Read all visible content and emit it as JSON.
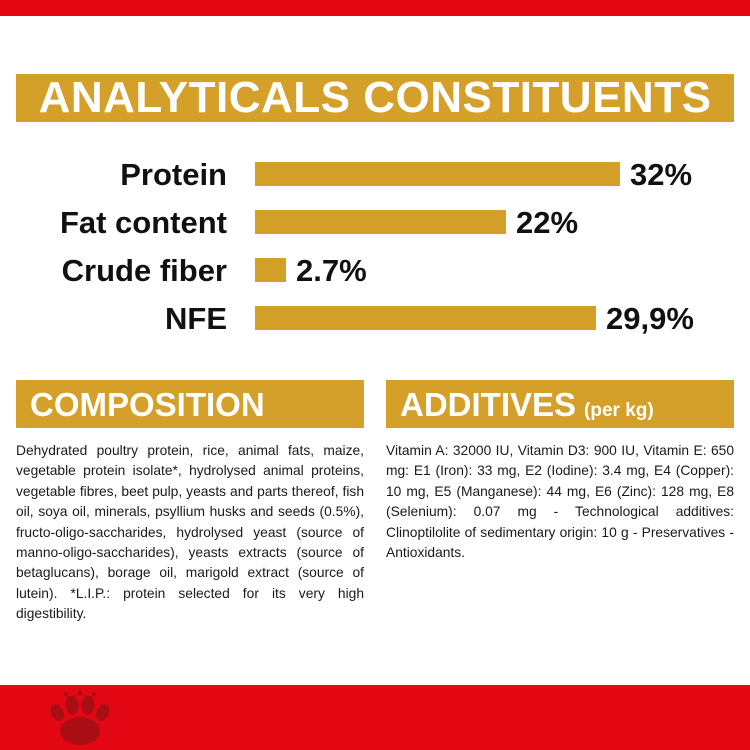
{
  "colors": {
    "gold": "#D4A029",
    "red": "#E30613",
    "paw": "#A80E14",
    "ink": "#111111"
  },
  "header": {
    "title": "ANALYTICALS CONSTITUENTS"
  },
  "chart_data": {
    "type": "bar",
    "orientation": "horizontal",
    "categories": [
      "Protein",
      "Fat content",
      "Crude fiber",
      "NFE"
    ],
    "values": [
      32,
      22,
      2.7,
      29.9
    ],
    "value_labels": [
      "32%",
      "22%",
      "2.7%",
      "29,9%"
    ],
    "title": "ANALYTICALS CONSTITUENTS",
    "xlabel": "",
    "ylabel": "",
    "xlim": [
      0,
      35
    ],
    "grid": false,
    "legend": false,
    "bar_color": "#D4A029"
  },
  "composition": {
    "title": "COMPOSITION",
    "body": "Dehydrated poultry protein, rice, animal fats, maize, vegetable protein isolate*, hydrolysed animal proteins, vegetable fibres, beet pulp, yeasts and parts thereof, fish oil, soya oil, minerals, psyllium husks and seeds (0.5%), fructo-oligo-saccharides, hydrolysed yeast (source of manno-oligo-saccharides), yeasts extracts (source of betaglucans), borage oil, marigold extract (source of lutein). *L.I.P.: protein selected for its very high digestibility."
  },
  "additives": {
    "title": "ADDITIVES",
    "title_suffix": "(per kg)",
    "body": "Vitamin A: 32000 IU, Vitamin D3: 900 IU, Vitamin E: 650 mg: E1 (Iron): 33 mg, E2 (Iodine): 3.4 mg, E4 (Copper): 10 mg, E5 (Manganese): 44 mg, E6 (Zinc): 128 mg, E8 (Selenium): 0.07 mg - Technological additives: Clinoptilolite of sedimentary origin: 10 g - Preservatives - Antioxidants."
  }
}
